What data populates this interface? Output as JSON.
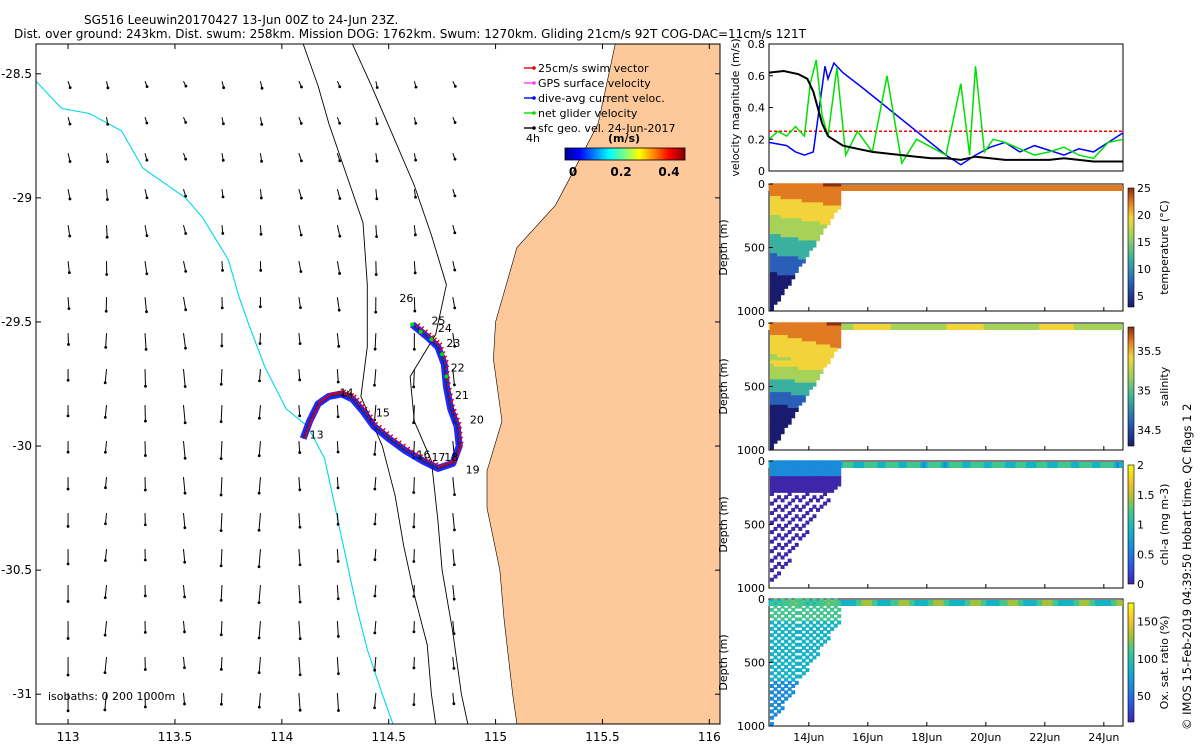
{
  "header": {
    "title": "SG516 Leeuwin20170427 13-Jun 00Z to 24-Jun 23Z.",
    "subtitle": "Dist. over ground: 243km. Dist. swum: 258km. Mission DOG: 1762km. Swum: 1270km. Gliding 21cm/s 92T COG-DAC=11cm/s 121T"
  },
  "colors": {
    "land": "#fdc99a",
    "isobath_0": "#00d8e8",
    "swim": "#e00000",
    "gps": "#ff40ff",
    "dac": "#0000ff",
    "net": "#00dd00",
    "geo": "#000000"
  },
  "chart_data": [
    {
      "type": "scatter",
      "role": "map",
      "xlim": [
        112.85,
        116.05
      ],
      "ylim": [
        -31.12,
        -28.38
      ],
      "xticks": [
        "113",
        "113.5",
        "114",
        "114.5",
        "115",
        "115.5",
        "116"
      ],
      "xtick_values": [
        113,
        113.5,
        114,
        114.5,
        115,
        115.5,
        116
      ],
      "yticks": [
        "-28.5",
        "-29",
        "-29.5",
        "-30",
        "-30.5",
        "-31"
      ],
      "ytick_values": [
        -28.5,
        -29,
        -29.5,
        -30,
        -30.5,
        -31
      ],
      "legend": [
        "25cm/s swim vector",
        "GPS surface velocity",
        "dive-avg current veloc.",
        "net glider velocity",
        "sfc geo. vel. 24-Jun-2017"
      ],
      "legend_scale": "4h",
      "colorbar_title": "(m/s)",
      "colorbar_ticks": [
        "0",
        "0.2",
        "0.4"
      ],
      "colorbar_range": [
        0,
        0.5
      ],
      "isobath_note": "isobaths: 0   200  1000m",
      "day_labels": [
        {
          "text": "13",
          "lon": 114.13,
          "lat": -29.97
        },
        {
          "text": "14",
          "lon": 114.27,
          "lat": -29.8
        },
        {
          "text": "15",
          "lon": 114.44,
          "lat": -29.88
        },
        {
          "text": "16",
          "lon": 114.63,
          "lat": -30.05
        },
        {
          "text": "17",
          "lon": 114.7,
          "lat": -30.06
        },
        {
          "text": "18",
          "lon": 114.76,
          "lat": -30.06
        },
        {
          "text": "19",
          "lon": 114.86,
          "lat": -30.11
        },
        {
          "text": "20",
          "lon": 114.88,
          "lat": -29.91
        },
        {
          "text": "21",
          "lon": 114.81,
          "lat": -29.81
        },
        {
          "text": "22",
          "lon": 114.79,
          "lat": -29.7
        },
        {
          "text": "23",
          "lon": 114.77,
          "lat": -29.6
        },
        {
          "text": "24",
          "lon": 114.73,
          "lat": -29.54
        },
        {
          "text": "25",
          "lon": 114.7,
          "lat": -29.51
        },
        {
          "text": "26",
          "lon": 114.55,
          "lat": -29.42
        }
      ],
      "track": [
        [
          114.1,
          -29.97
        ],
        [
          114.13,
          -29.9
        ],
        [
          114.17,
          -29.83
        ],
        [
          114.22,
          -29.8
        ],
        [
          114.28,
          -29.79
        ],
        [
          114.33,
          -29.81
        ],
        [
          114.38,
          -29.86
        ],
        [
          114.43,
          -29.92
        ],
        [
          114.5,
          -29.97
        ],
        [
          114.58,
          -30.02
        ],
        [
          114.66,
          -30.06
        ],
        [
          114.73,
          -30.09
        ],
        [
          114.8,
          -30.07
        ],
        [
          114.83,
          -30.0
        ],
        [
          114.82,
          -29.92
        ],
        [
          114.79,
          -29.85
        ],
        [
          114.77,
          -29.76
        ],
        [
          114.76,
          -29.67
        ],
        [
          114.73,
          -29.6
        ],
        [
          114.68,
          -29.56
        ],
        [
          114.61,
          -29.51
        ]
      ],
      "coast": [
        [
          115.56,
          -28.38
        ],
        [
          115.48,
          -28.7
        ],
        [
          115.36,
          -28.9
        ],
        [
          115.28,
          -29.03
        ],
        [
          115.1,
          -29.2
        ],
        [
          115.0,
          -29.5
        ],
        [
          114.99,
          -29.65
        ],
        [
          115.03,
          -29.9
        ],
        [
          114.96,
          -30.1
        ],
        [
          114.96,
          -30.25
        ],
        [
          115.02,
          -30.5
        ],
        [
          115.04,
          -30.7
        ],
        [
          115.08,
          -31.0
        ],
        [
          115.1,
          -31.12
        ]
      ],
      "isobath_200": [
        [
          114.33,
          -28.38
        ],
        [
          114.42,
          -28.55
        ],
        [
          114.52,
          -28.75
        ],
        [
          114.62,
          -28.95
        ],
        [
          114.7,
          -29.15
        ],
        [
          114.77,
          -29.35
        ],
        [
          114.72,
          -29.55
        ],
        [
          114.6,
          -29.72
        ],
        [
          114.62,
          -29.9
        ],
        [
          114.7,
          -30.06
        ],
        [
          114.73,
          -30.3
        ],
        [
          114.75,
          -30.5
        ],
        [
          114.8,
          -30.75
        ],
        [
          114.84,
          -31.0
        ],
        [
          114.87,
          -31.12
        ]
      ],
      "isobath_1000": [
        [
          114.1,
          -28.38
        ],
        [
          114.17,
          -28.55
        ],
        [
          114.22,
          -28.7
        ],
        [
          114.3,
          -28.9
        ],
        [
          114.38,
          -29.1
        ],
        [
          114.4,
          -29.35
        ],
        [
          114.4,
          -29.6
        ],
        [
          114.37,
          -29.8
        ],
        [
          114.47,
          -30.0
        ],
        [
          114.53,
          -30.2
        ],
        [
          114.57,
          -30.4
        ],
        [
          114.62,
          -30.6
        ],
        [
          114.68,
          -30.8
        ],
        [
          114.7,
          -31.0
        ],
        [
          114.72,
          -31.12
        ]
      ],
      "isobath_cyan": [
        [
          112.85,
          -28.53
        ],
        [
          112.97,
          -28.64
        ],
        [
          113.1,
          -28.66
        ],
        [
          113.25,
          -28.73
        ],
        [
          113.35,
          -28.88
        ],
        [
          113.55,
          -29.0
        ],
        [
          113.63,
          -29.08
        ],
        [
          113.75,
          -29.25
        ],
        [
          113.8,
          -29.4
        ],
        [
          113.85,
          -29.52
        ],
        [
          113.92,
          -29.68
        ],
        [
          114.02,
          -29.85
        ],
        [
          114.12,
          -29.92
        ],
        [
          114.2,
          -30.05
        ],
        [
          114.25,
          -30.25
        ],
        [
          114.3,
          -30.45
        ],
        [
          114.35,
          -30.65
        ],
        [
          114.4,
          -30.82
        ],
        [
          114.47,
          -31.0
        ],
        [
          114.52,
          -31.12
        ]
      ]
    },
    {
      "type": "line",
      "role": "velocity",
      "ylabel": "velocity magnitude (m/s)",
      "ylim": [
        0,
        0.8
      ],
      "yticks": [
        "0",
        "0.2",
        "0.4",
        "0.6",
        "0.8"
      ],
      "xlim": [
        13.0,
        25.0
      ],
      "series": [
        {
          "color": "#ff0000",
          "style": "dashed",
          "x": [
            13.0,
            25.0
          ],
          "y": [
            0.25,
            0.25
          ]
        },
        {
          "color": "#0000ff",
          "x": [
            13.0,
            13.3,
            13.6,
            13.9,
            14.2,
            14.5,
            14.9,
            15.0,
            15.2,
            15.5,
            16.2,
            17.0,
            18.0,
            19.0,
            19.5,
            20.0,
            20.5,
            21.0,
            21.5,
            22.0,
            22.5,
            23.0,
            23.5,
            24.0,
            24.5,
            25.0
          ],
          "y": [
            0.18,
            0.17,
            0.16,
            0.12,
            0.1,
            0.12,
            0.66,
            0.58,
            0.68,
            0.62,
            0.52,
            0.4,
            0.25,
            0.1,
            0.04,
            0.1,
            0.15,
            0.18,
            0.12,
            0.16,
            0.13,
            0.1,
            0.14,
            0.12,
            0.18,
            0.24
          ]
        },
        {
          "color": "#00e000",
          "x": [
            13.0,
            13.3,
            13.6,
            13.9,
            14.2,
            14.4,
            14.6,
            14.8,
            15.0,
            15.3,
            15.6,
            16.0,
            16.5,
            17.0,
            17.5,
            18.0,
            18.5,
            19.0,
            19.5,
            19.8,
            20.0,
            20.3,
            20.6,
            21.0,
            21.5,
            22.0,
            22.5,
            23.0,
            23.5,
            24.0,
            24.5,
            25.0
          ],
          "y": [
            0.2,
            0.25,
            0.22,
            0.28,
            0.22,
            0.55,
            0.7,
            0.35,
            0.22,
            0.65,
            0.1,
            0.25,
            0.12,
            0.6,
            0.05,
            0.2,
            0.15,
            0.1,
            0.55,
            0.1,
            0.66,
            0.12,
            0.2,
            0.18,
            0.14,
            0.1,
            0.12,
            0.15,
            0.1,
            0.08,
            0.18,
            0.2
          ]
        },
        {
          "color": "#000000",
          "x": [
            13.0,
            13.5,
            14.0,
            14.3,
            14.5,
            14.8,
            15.0,
            15.5,
            16.0,
            16.5,
            17.0,
            17.5,
            18.0,
            18.5,
            19.0,
            19.5,
            20.0,
            20.5,
            21.0,
            21.5,
            22.0,
            22.5,
            23.0,
            23.5,
            24.0,
            24.5,
            25.0
          ],
          "y": [
            0.62,
            0.63,
            0.61,
            0.58,
            0.5,
            0.3,
            0.22,
            0.16,
            0.14,
            0.12,
            0.11,
            0.1,
            0.09,
            0.08,
            0.08,
            0.07,
            0.09,
            0.08,
            0.07,
            0.07,
            0.07,
            0.07,
            0.08,
            0.07,
            0.06,
            0.06,
            0.06
          ]
        }
      ]
    },
    {
      "type": "heatmap",
      "role": "section",
      "ylabel": "Depth (m)",
      "yticks": [
        "0",
        "500",
        "1000"
      ],
      "ylim": [
        1000,
        0
      ],
      "colorbar_label": "temperature (°C)",
      "colorbar_ticks": [
        "5",
        "10",
        "15",
        "20",
        "25"
      ],
      "colorbar_range": [
        3,
        25
      ]
    },
    {
      "type": "heatmap",
      "role": "section",
      "ylabel": "Depth (m)",
      "yticks": [
        "0",
        "500",
        "1000"
      ],
      "ylim": [
        1000,
        0
      ],
      "colorbar_label": "salinity",
      "colorbar_ticks": [
        "34.5",
        "35",
        "35.5"
      ],
      "colorbar_range": [
        34.3,
        35.8
      ]
    },
    {
      "type": "heatmap",
      "role": "section",
      "ylabel": "Depth (m)",
      "yticks": [
        "0",
        "500",
        "1000"
      ],
      "ylim": [
        1000,
        0
      ],
      "colorbar_label": "chl-a (mg m-3)",
      "colorbar_ticks": [
        "0",
        "0.5",
        "1",
        "1.5",
        "2"
      ],
      "colorbar_range": [
        0,
        2
      ]
    },
    {
      "type": "heatmap",
      "role": "section",
      "ylabel": "Depth (m)",
      "yticks": [
        "0",
        "500",
        "1000"
      ],
      "ylim": [
        1000,
        0
      ],
      "colorbar_label": "Ox. sat. ratio (%)",
      "colorbar_ticks": [
        "50",
        "100",
        "150"
      ],
      "colorbar_range": [
        15,
        175
      ],
      "xticks": [
        "14Jun",
        "16Jun",
        "18Jun",
        "20Jun",
        "22Jun",
        "24Jun"
      ],
      "xtick_values": [
        14,
        16,
        18,
        20,
        22,
        24
      ]
    }
  ],
  "credit": "© IMOS 15-Feb-2019 04:39:50 Hobart time. QC flags 1  2"
}
